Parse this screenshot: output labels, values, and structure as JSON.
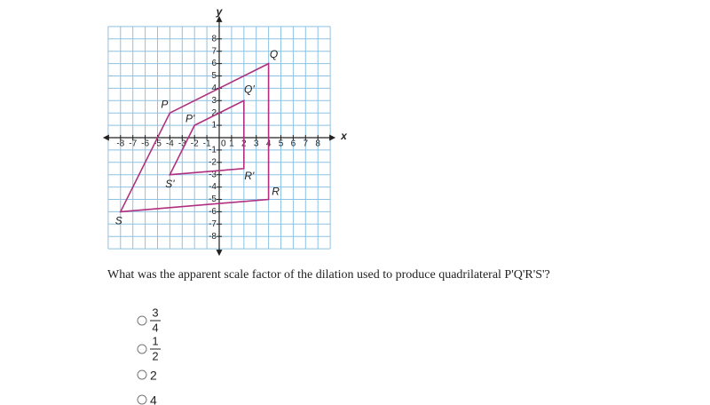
{
  "graph": {
    "x_label": "x",
    "y_label": "y",
    "grid_range": [
      -9,
      9
    ],
    "origin_label": "0",
    "xticks": [
      -8,
      -7,
      -6,
      -5,
      -4,
      -3,
      -2,
      -1,
      1,
      2,
      3,
      4,
      5,
      6,
      7,
      8
    ],
    "yticks": [
      8,
      7,
      6,
      5,
      4,
      3,
      2,
      1,
      -1,
      -2,
      -3,
      -4,
      -5,
      -6,
      -7,
      -8
    ],
    "figures": [
      {
        "color": "#b0307f",
        "vertices": [
          {
            "label": "P",
            "x": -4,
            "y": 2
          },
          {
            "label": "Q",
            "x": 4,
            "y": 6
          },
          {
            "label": "R",
            "x": 4,
            "y": -5
          },
          {
            "label": "S",
            "x": -8,
            "y": -6
          }
        ]
      },
      {
        "color": "#b0307f",
        "vertices": [
          {
            "label": "P'",
            "x": -2,
            "y": 1
          },
          {
            "label": "Q'",
            "x": 2,
            "y": 3
          },
          {
            "label": "R'",
            "x": 2,
            "y": -2.5
          },
          {
            "label": "S'",
            "x": -4,
            "y": -3
          }
        ]
      }
    ]
  },
  "question": "What was the apparent scale factor of the dilation used to produce quadrilateral P'Q'R'S'?",
  "options": [
    {
      "numerator": "3",
      "denominator": "4"
    },
    {
      "numerator": "1",
      "denominator": "2"
    },
    {
      "text": "2"
    },
    {
      "text": "4"
    }
  ]
}
